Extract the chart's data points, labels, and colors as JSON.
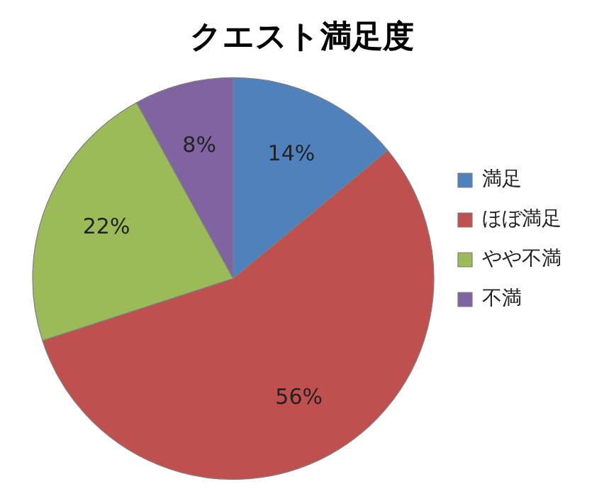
{
  "chart_data": {
    "type": "pie",
    "title": "クエスト満足度",
    "categories": [
      "満足",
      "ほぼ満足",
      "やや不満",
      "不満"
    ],
    "values": [
      14,
      56,
      22,
      8
    ],
    "colors": [
      "#4f81bd",
      "#c0504d",
      "#9bbb59",
      "#8064a2"
    ],
    "value_labels": [
      "14%",
      "56%",
      "22%",
      "8%"
    ],
    "legend": "right"
  }
}
